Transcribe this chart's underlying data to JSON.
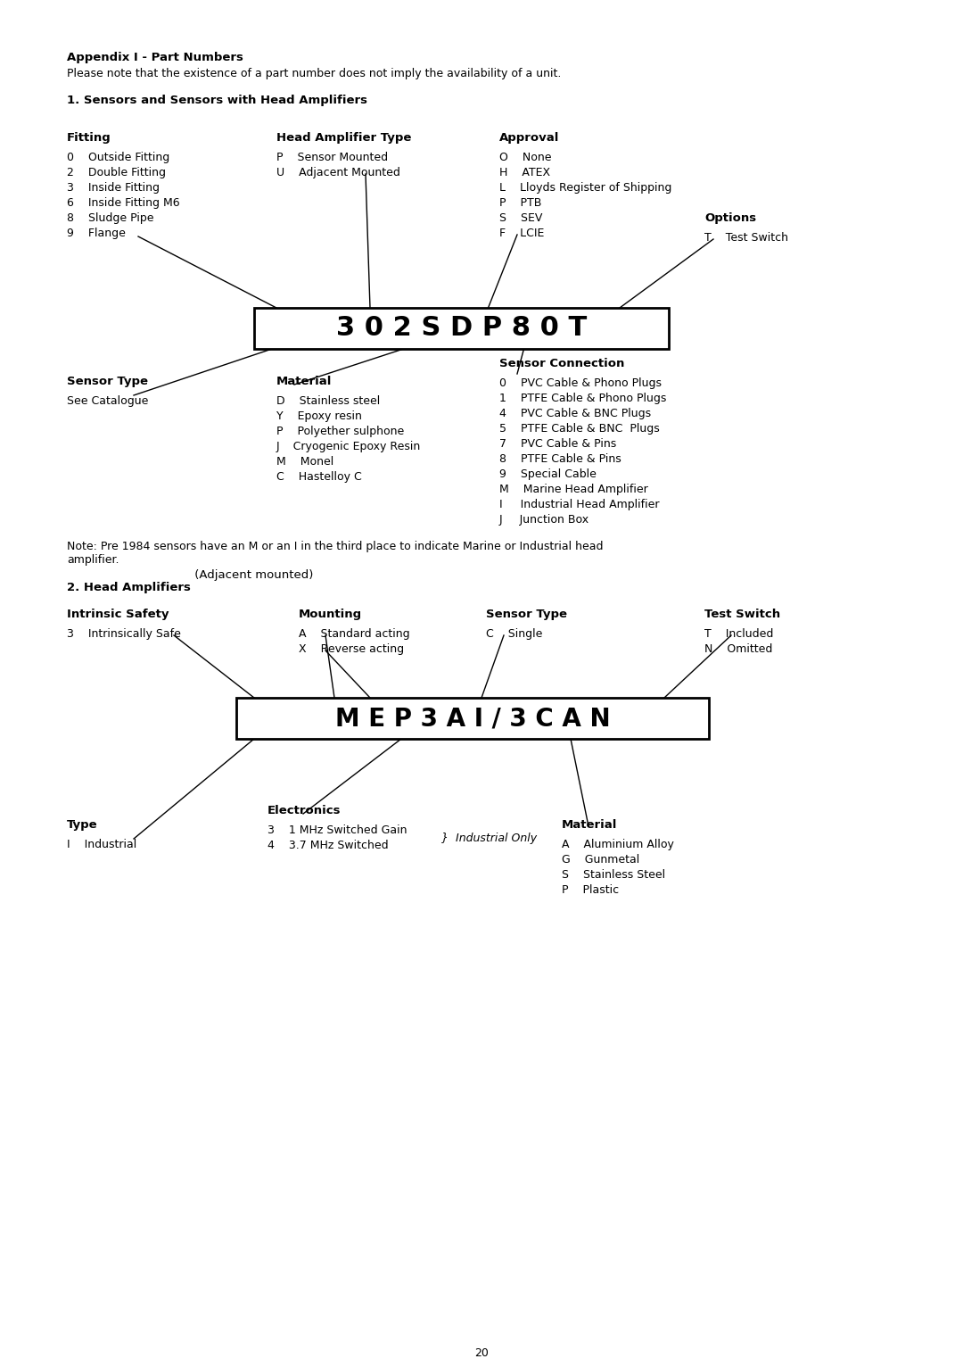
{
  "bg_color": "#ffffff",
  "title_bold": "Appendix I - Part Numbers",
  "subtitle": "Please note that the existence of a part number does not imply the availability of a unit.",
  "section1_title": "1. Sensors and Sensors with Head Amplifiers",
  "part1_code": "3 0 2 S D P 8 0 T",
  "part2_code": "M E P 3 A I / 3 C A N",
  "section2_title_bold": "2. Head Amplifiers",
  "section2_title_normal": " (Adjacent mounted)",
  "note_text": "Note: Pre 1984 sensors have an M or an I in the third place to indicate Marine or Industrial head\namplifier.",
  "page_number": "20",
  "col1_header": "Fitting",
  "col1_items": [
    "0    Outside Fitting",
    "2    Double Fitting",
    "3    Inside Fitting",
    "6    Inside Fitting M6",
    "8    Sludge Pipe",
    "9    Flange"
  ],
  "col2_header": "Head Amplifier Type",
  "col2_items": [
    "P    Sensor Mounted",
    "U    Adjacent Mounted"
  ],
  "col3_header": "Approval",
  "col3_items": [
    "O    None",
    "H    ATEX",
    "L    Lloyds Register of Shipping",
    "P    PTB",
    "S    SEV",
    "F    LCIE"
  ],
  "col4_header": "Options",
  "col4_items": [
    "T    Test Switch"
  ],
  "sc_header": "Sensor Connection",
  "sc_items": [
    "0    PVC Cable & Phono Plugs",
    "1    PTFE Cable & Phono Plugs",
    "4    PVC Cable & BNC Plugs",
    "5    PTFE Cable & BNC  Plugs",
    "7    PVC Cable & Pins",
    "8    PTFE Cable & Pins",
    "9    Special Cable",
    "M    Marine Head Amplifier",
    "I     Industrial Head Amplifier",
    "J     Junction Box"
  ],
  "st1_header": "Sensor Type",
  "st1_items": [
    "See Catalogue"
  ],
  "mat1_header": "Material",
  "mat1_items": [
    "D    Stainless steel",
    "Y    Epoxy resin",
    "P    Polyether sulphone",
    "J    Cryogenic Epoxy Resin",
    "M    Monel",
    "C    Hastelloy C"
  ],
  "is_header": "Intrinsic Safety",
  "is_items": [
    "3    Intrinsically Safe"
  ],
  "mount_header": "Mounting",
  "mount_items": [
    "A    Standard acting",
    "X    Reverse acting"
  ],
  "st2_header": "Sensor Type",
  "st2_items": [
    "C    Single"
  ],
  "ts_header": "Test Switch",
  "ts_items": [
    "T    Included",
    "N    Omitted"
  ],
  "type_header": "Type",
  "type_items": [
    "I    Industrial"
  ],
  "elec_header": "Electronics",
  "elec_items": [
    "3    1 MHz Switched Gain",
    "4    3.7 MHz Switched"
  ],
  "elec_note": "}  Industrial Only",
  "mat2_header": "Material",
  "mat2_items": [
    "A    Aluminium Alloy",
    "G    Gunmetal",
    "S    Stainless Steel",
    "P    Plastic"
  ]
}
